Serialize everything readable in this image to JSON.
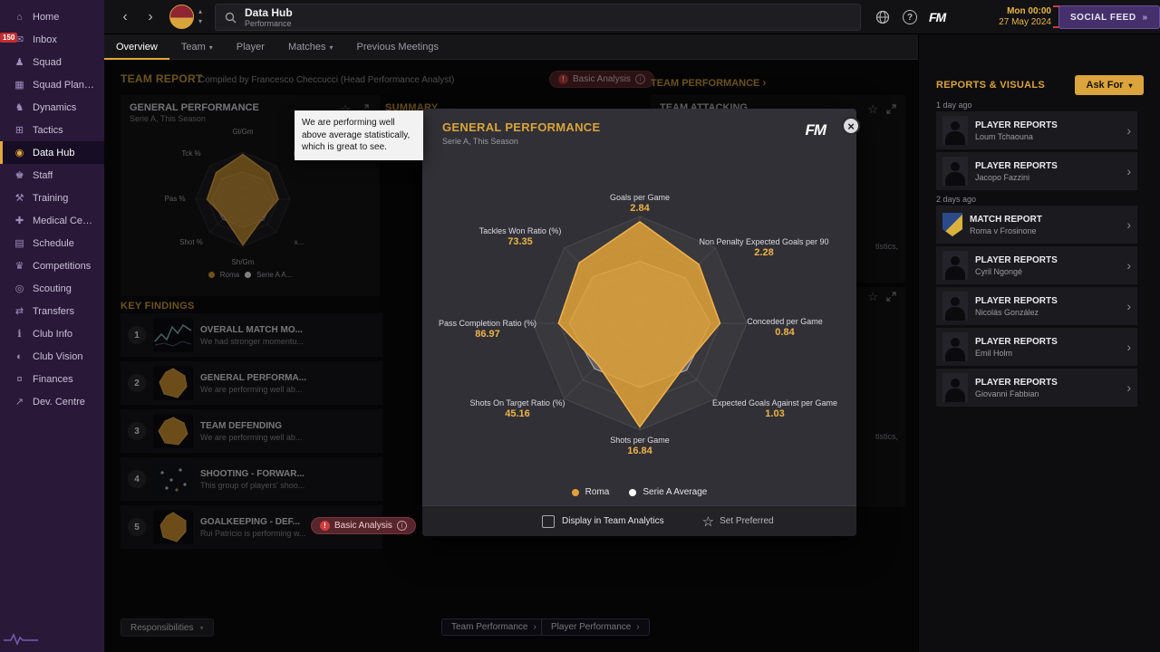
{
  "icons": {
    "caret_down": "▾",
    "caret_up": "▴",
    "chevron_right": "›",
    "chevron_left": "‹",
    "star": "☆",
    "close": "×",
    "double_chevron": "»",
    "help": "?",
    "excl": "!",
    "info": "i"
  },
  "sidebar": {
    "items": [
      {
        "label": "Home",
        "glyph": "⌂"
      },
      {
        "label": "Inbox",
        "glyph": "✉",
        "badge": "150"
      },
      {
        "label": "Squad",
        "glyph": "♟"
      },
      {
        "label": "Squad Planner",
        "glyph": "▦"
      },
      {
        "label": "Dynamics",
        "glyph": "♞"
      },
      {
        "label": "Tactics",
        "glyph": "⊞"
      },
      {
        "label": "Data Hub",
        "glyph": "◉"
      },
      {
        "label": "Staff",
        "glyph": "♚"
      },
      {
        "label": "Training",
        "glyph": "⚒"
      },
      {
        "label": "Medical Centre",
        "glyph": "✚"
      },
      {
        "label": "Schedule",
        "glyph": "▤"
      },
      {
        "label": "Competitions",
        "glyph": "♛"
      },
      {
        "label": "Scouting",
        "glyph": "◎"
      },
      {
        "label": "Transfers",
        "glyph": "⇄"
      },
      {
        "label": "Club Info",
        "glyph": "ℹ"
      },
      {
        "label": "Club Vision",
        "glyph": "◐"
      },
      {
        "label": "Finances",
        "glyph": "¤"
      },
      {
        "label": "Dev. Centre",
        "glyph": "↗"
      }
    ]
  },
  "topbar": {
    "title": "Data Hub",
    "subtitle": "Performance",
    "fm_logo": "FM",
    "clock_time": "Mon 00:00",
    "clock_date": "27 May 2024",
    "social_feed_label": "SOCIAL FEED"
  },
  "tabs": [
    {
      "label": "Overview"
    },
    {
      "label": "Team"
    },
    {
      "label": "Player"
    },
    {
      "label": "Matches"
    },
    {
      "label": "Previous Meetings"
    }
  ],
  "report_header": {
    "title": "TEAM REPORT",
    "compiled_by": "Compiled by Francesco Checcucci (Head Performance Analyst)",
    "badge": "Basic Analysis"
  },
  "links": {
    "team_performance_header": "TEAM PERFORMANCE"
  },
  "general_panel": {
    "title": "GENERAL PERFORMANCE",
    "subtitle": "Serie A, This Season",
    "mini_labels": [
      "Gl/Gm",
      "N...",
      "",
      "x...",
      "Sh/Gm",
      "Shot %",
      "Pas %",
      "Tck %"
    ],
    "legend_roma": "Roma",
    "legend_avg": "Serie A A..."
  },
  "summary_panel": {
    "title": "SUMMARY"
  },
  "attacking_panel": {
    "title": "TEAM ATTACKING",
    "fragment_top": "tistics,",
    "fragment_bottom": "tistics,"
  },
  "key_findings": {
    "title": "KEY FINDINGS",
    "items": [
      {
        "num": "1",
        "title": "OVERALL MATCH MO...",
        "desc": "We had stronger momentu..."
      },
      {
        "num": "2",
        "title": "GENERAL PERFORMA...",
        "desc": "We are performing well ab..."
      },
      {
        "num": "3",
        "title": "TEAM DEFENDING",
        "desc": "We are performing well ab..."
      },
      {
        "num": "4",
        "title": "SHOOTING - FORWAR...",
        "desc": "This group of players' shoo..."
      },
      {
        "num": "5",
        "title": "GOALKEEPING - DEF...",
        "desc": "Rui Patricio is performing w..."
      }
    ]
  },
  "footer_buttons": {
    "responsibilities": "Responsibilities",
    "team_performance": "Team Performance",
    "player_performance": "Player Performance"
  },
  "reports_panel": {
    "title": "REPORTS & VISUALS",
    "ask_for": "Ask For",
    "groups": [
      {
        "when": "1 day ago",
        "cards": [
          {
            "type": "PLAYER REPORTS",
            "name": "Loum Tchaouna"
          },
          {
            "type": "PLAYER REPORTS",
            "name": "Jacopo Fazzini"
          }
        ]
      },
      {
        "when": "2 days ago",
        "cards": [
          {
            "type": "MATCH REPORT",
            "name": "Roma v Frosinone"
          },
          {
            "type": "PLAYER REPORTS",
            "name": "Cyril Ngongé"
          },
          {
            "type": "PLAYER REPORTS",
            "name": "Nicolás González"
          },
          {
            "type": "PLAYER REPORTS",
            "name": "Emil Holm"
          },
          {
            "type": "PLAYER REPORTS",
            "name": "Giovanni Fabbian"
          }
        ]
      }
    ]
  },
  "modal": {
    "title": "GENERAL PERFORMANCE",
    "subtitle": "Serie A, This Season",
    "fm_logo": "FM",
    "tooltip": "We are performing well above average statistically, which is great to see.",
    "badge": "Basic Analysis",
    "checkbox_label": "Display in Team Analytics",
    "set_preferred_label": "Set Preferred",
    "legend": [
      {
        "label": "Roma"
      },
      {
        "label": "Serie A Average"
      }
    ]
  },
  "colors": {
    "accent_gold": "#d9a43a",
    "roma_fill": "#e2a037",
    "avg_fill": "#ffffff",
    "sidebar_purple": "#2a1838",
    "social_purple": "#45306b",
    "badge_red": "#d23c3c"
  },
  "chart_data": {
    "type": "radar",
    "title": "GENERAL PERFORMANCE",
    "subtitle": "Serie A, This Season",
    "series": [
      {
        "name": "Roma",
        "color": "#e2a037"
      },
      {
        "name": "Serie A Average",
        "color": "#ffffff"
      }
    ],
    "axes": [
      {
        "label": "Goals per Game",
        "roma_value": 2.84,
        "roma_r": 0.95,
        "avg_r": 0.58
      },
      {
        "label": "Non Penalty Expected Goals per 90",
        "roma_value": 2.28,
        "roma_r": 0.78,
        "avg_r": 0.6
      },
      {
        "label": "Conceded per Game",
        "roma_value": 0.84,
        "roma_r": 0.75,
        "avg_r": 0.66
      },
      {
        "label": "Expected Goals Against per Game",
        "roma_value": 1.03,
        "roma_r": 0.58,
        "avg_r": 0.62
      },
      {
        "label": "Shots per Game",
        "roma_value": 16.84,
        "roma_r": 0.97,
        "avg_r": 0.6
      },
      {
        "label": "Shots On Target Ratio (%)",
        "roma_value": 45.16,
        "roma_r": 0.55,
        "avg_r": 0.6
      },
      {
        "label": "Pass Completion Ratio (%)",
        "roma_value": 86.97,
        "roma_r": 0.76,
        "avg_r": 0.66
      },
      {
        "label": "Tackles Won Ratio (%)",
        "roma_value": 73.35,
        "roma_r": 0.8,
        "avg_r": 0.62
      }
    ]
  }
}
